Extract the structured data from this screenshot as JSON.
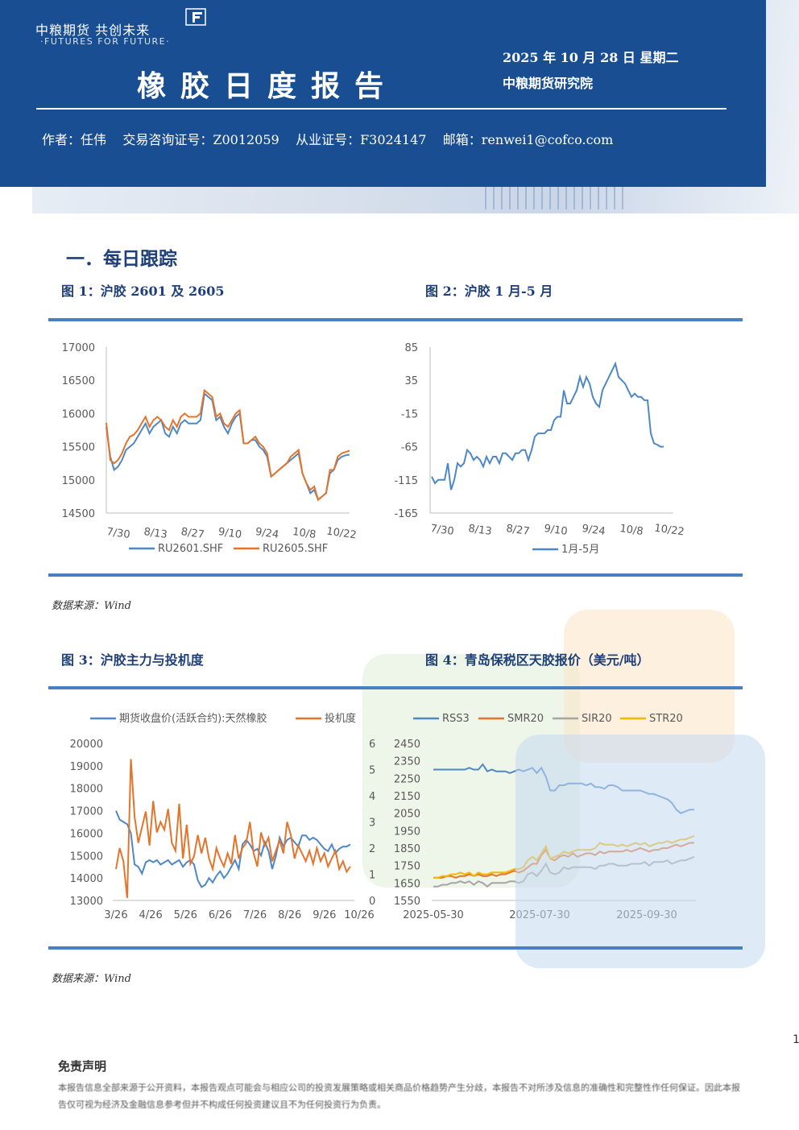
{
  "header": {
    "logo_text": "中粮期货  共创未来",
    "logo_sub": "·FUTURES FOR FUTURE·",
    "title": "橡胶日度报告",
    "date": "2025 年 10 月 28 日  星期二",
    "org": "中粮期货研究院",
    "author_line": "作者：任伟    交易咨询证号：Z0012059    从业证号：F3024147    邮箱：renwei1@cofco.com"
  },
  "section": {
    "title": "一．每日跟踪"
  },
  "figures": {
    "fig1_title": "图 1：沪胶 2601 及 2605",
    "fig2_title": "图 2：沪胶 1 月-5 月",
    "fig3_title": "图 3：沪胶主力与投机度",
    "fig4_title": "图 4：青岛保税区天胶报价（美元/吨）"
  },
  "sources": {
    "s1": "数据来源：Wind",
    "s2": "数据来源：Wind"
  },
  "page_number": "1",
  "disclaimer": {
    "title": "免责声明",
    "text": "本报告信息全部来源于公开资料，本报告观点可能会与相应公司的投资发展策略或相关商品价格趋势产生分歧，本报告不对所涉及信息的准确性和完整性作任何保证。因此本报告仅可视为经济及金融信息参考但并不构成任何投资建议且不为任何投资行为负责。"
  },
  "colors": {
    "header_blue": "#1a4e92",
    "rule_blue": "#4a7fc0",
    "series_blue": "#4e87c8",
    "series_orange": "#e5742a",
    "series_gray": "#a5a5a5",
    "series_yellow": "#f4b800"
  },
  "chart_data": [
    {
      "id": "fig1",
      "type": "line",
      "x_ticks": [
        "7/30",
        "8/13",
        "8/27",
        "9/10",
        "9/24",
        "10/8",
        "10/22"
      ],
      "y_ticks": [
        "17000",
        "16500",
        "16000",
        "15500",
        "15000",
        "14500"
      ],
      "ylim": [
        14500,
        17000
      ],
      "series": [
        {
          "name": "RU2601.SHF",
          "color": "#4e87c8",
          "values": [
            15800,
            15350,
            15150,
            15200,
            15300,
            15450,
            15500,
            15550,
            15650,
            15750,
            15850,
            15700,
            15800,
            15850,
            15900,
            15700,
            15650,
            15800,
            15700,
            15850,
            15900,
            15850,
            15850,
            15850,
            15900,
            16300,
            16250,
            16200,
            15900,
            15950,
            15800,
            15700,
            15850,
            15950,
            16000,
            15550,
            15550,
            15600,
            15600,
            15500,
            15450,
            15350,
            15050,
            15100,
            15150,
            15200,
            15250,
            15300,
            15350,
            15400,
            15100,
            14950,
            14800,
            14850,
            14700,
            14750,
            14800,
            15100,
            15150,
            15300,
            15350,
            15370,
            15380
          ]
        },
        {
          "name": "RU2605.SHF",
          "color": "#e5742a",
          "values": [
            15860,
            15300,
            15250,
            15300,
            15400,
            15550,
            15650,
            15680,
            15750,
            15850,
            15950,
            15800,
            15900,
            15950,
            15900,
            15800,
            15750,
            15900,
            15800,
            15950,
            16000,
            15950,
            15950,
            15950,
            16000,
            16350,
            16300,
            16250,
            15950,
            16000,
            15850,
            15800,
            15900,
            16000,
            16050,
            15550,
            15550,
            15600,
            15650,
            15550,
            15500,
            15400,
            15050,
            15100,
            15150,
            15200,
            15250,
            15350,
            15400,
            15450,
            15100,
            14950,
            14850,
            14900,
            14700,
            14750,
            14800,
            15150,
            15150,
            15350,
            15400,
            15420,
            15440
          ]
        }
      ]
    },
    {
      "id": "fig2",
      "type": "line",
      "x_ticks": [
        "7/30",
        "8/13",
        "8/27",
        "9/10",
        "9/24",
        "10/8",
        "10/22"
      ],
      "y_ticks": [
        "85",
        "35",
        "-15",
        "-65",
        "-115",
        "-165"
      ],
      "ylim": [
        -165,
        85
      ],
      "series": [
        {
          "name": "1月-5月",
          "color": "#4e87c8",
          "values": [
            -110,
            -120,
            -115,
            -115,
            -115,
            -90,
            -130,
            -115,
            -90,
            -95,
            -90,
            -70,
            -75,
            -85,
            -80,
            -85,
            -95,
            -80,
            -90,
            -80,
            -80,
            -90,
            -75,
            -75,
            -80,
            -85,
            -75,
            -75,
            -70,
            -70,
            -85,
            -70,
            -50,
            -45,
            -45,
            -45,
            -40,
            -40,
            -25,
            -20,
            -20,
            20,
            0,
            0,
            10,
            20,
            40,
            25,
            40,
            30,
            10,
            0,
            -5,
            20,
            30,
            40,
            50,
            60,
            40,
            35,
            30,
            20,
            10,
            15,
            10,
            10,
            5,
            5,
            -45,
            -60,
            -62,
            -65,
            -65
          ]
        }
      ]
    },
    {
      "id": "fig3",
      "type": "line",
      "x_ticks": [
        "3/26",
        "4/26",
        "5/26",
        "6/26",
        "7/26",
        "8/26",
        "9/26",
        "10/26"
      ],
      "y_ticks_left": [
        "20000",
        "19000",
        "18000",
        "17000",
        "16000",
        "15000",
        "14000",
        "13000"
      ],
      "y_ticks_right": [
        "6",
        "5",
        "4",
        "3",
        "2",
        "1",
        "0"
      ],
      "ylim_left": [
        13000,
        20000
      ],
      "ylim_right": [
        0,
        6
      ],
      "series": [
        {
          "name": "期货收盘价(活跃合约):天然橡胶",
          "color": "#4e87c8",
          "axis": "left",
          "values": [
            17000,
            16600,
            16500,
            16400,
            16000,
            14600,
            14500,
            14200,
            14700,
            14800,
            14700,
            14800,
            14600,
            14700,
            14800,
            14600,
            14700,
            14800,
            14500,
            14700,
            14800,
            14600,
            13900,
            13600,
            13700,
            14000,
            13800,
            14100,
            14300,
            14000,
            14200,
            14500,
            14800,
            14400,
            15500,
            15700,
            15500,
            15200,
            15300,
            15000,
            15600,
            15200,
            14400,
            15000,
            15800,
            15400,
            15700,
            15800,
            15600,
            15400,
            15900,
            15900,
            15700,
            15800,
            15700,
            15500,
            15300,
            15200,
            15500,
            15100,
            15300,
            15400,
            15400,
            15500
          ]
        },
        {
          "name": "投机度",
          "color": "#e5742a",
          "axis": "right",
          "values": [
            1.2,
            2.0,
            1.5,
            0.1,
            5.4,
            3.2,
            2.2,
            2.8,
            3.4,
            2.1,
            3.8,
            2.6,
            3.0,
            2.7,
            3.5,
            2.2,
            1.9,
            3.7,
            1.6,
            2.9,
            1.4,
            1.7,
            2.5,
            1.8,
            2.4,
            1.6,
            1.2,
            2.0,
            1.6,
            1.3,
            1.8,
            1.4,
            2.5,
            1.6,
            2.0,
            2.2,
            3.0,
            1.8,
            1.3,
            2.6,
            2.1,
            2.4,
            1.5,
            1.9,
            2.3,
            1.8,
            3.0,
            2.5,
            1.6,
            2.1,
            1.8,
            1.5,
            1.9,
            1.4,
            2.0,
            1.5,
            1.8,
            1.3,
            1.6,
            1.9,
            1.2,
            1.5,
            1.1,
            1.3
          ]
        }
      ]
    },
    {
      "id": "fig4",
      "type": "line",
      "x_ticks": [
        "2025-05-30",
        "2025-07-30",
        "2025-09-30"
      ],
      "y_ticks": [
        "2450",
        "2350",
        "2250",
        "2150",
        "2050",
        "1950",
        "1850",
        "1750",
        "1650",
        "1550"
      ],
      "ylim": [
        1550,
        2450
      ],
      "series": [
        {
          "name": "RSS3",
          "color": "#4e87c8",
          "values": [
            2300,
            2300,
            2300,
            2300,
            2300,
            2300,
            2300,
            2300,
            2310,
            2300,
            2300,
            2330,
            2290,
            2300,
            2290,
            2290,
            2290,
            2280,
            2290,
            2300,
            2290,
            2300,
            2310,
            2280,
            2310,
            2260,
            2180,
            2180,
            2210,
            2210,
            2220,
            2220,
            2220,
            2220,
            2210,
            2220,
            2200,
            2200,
            2190,
            2210,
            2210,
            2200,
            2180,
            2180,
            2180,
            2180,
            2180,
            2170,
            2160,
            2160,
            2150,
            2140,
            2130,
            2110,
            2070,
            2050,
            2060,
            2070,
            2070
          ]
        },
        {
          "name": "SMR20",
          "color": "#e5742a",
          "values": [
            1680,
            1680,
            1680,
            1690,
            1690,
            1680,
            1690,
            1690,
            1700,
            1690,
            1700,
            1690,
            1690,
            1700,
            1690,
            1700,
            1700,
            1710,
            1720,
            1710,
            1720,
            1740,
            1760,
            1760,
            1810,
            1840,
            1790,
            1780,
            1800,
            1810,
            1800,
            1820,
            1800,
            1810,
            1820,
            1820,
            1810,
            1830,
            1820,
            1830,
            1830,
            1830,
            1830,
            1840,
            1830,
            1840,
            1850,
            1840,
            1830,
            1840,
            1840,
            1850,
            1850,
            1860,
            1870,
            1860,
            1870,
            1880,
            1880
          ]
        },
        {
          "name": "SIR20",
          "color": "#a5a5a5",
          "values": [
            1630,
            1630,
            1640,
            1640,
            1650,
            1650,
            1660,
            1650,
            1660,
            1640,
            1660,
            1650,
            1630,
            1650,
            1650,
            1650,
            1650,
            1660,
            1660,
            1650,
            1660,
            1700,
            1710,
            1690,
            1720,
            1760,
            1710,
            1700,
            1710,
            1740,
            1730,
            1740,
            1740,
            1740,
            1740,
            1740,
            1730,
            1750,
            1750,
            1760,
            1760,
            1750,
            1750,
            1750,
            1760,
            1760,
            1760,
            1770,
            1750,
            1770,
            1770,
            1770,
            1780,
            1760,
            1770,
            1780,
            1780,
            1790,
            1800
          ]
        },
        {
          "name": "STR20",
          "color": "#f4b800",
          "values": [
            1680,
            1680,
            1690,
            1690,
            1700,
            1700,
            1710,
            1700,
            1710,
            1690,
            1710,
            1700,
            1700,
            1710,
            1710,
            1710,
            1710,
            1720,
            1730,
            1730,
            1740,
            1780,
            1800,
            1780,
            1820,
            1860,
            1790,
            1800,
            1810,
            1830,
            1820,
            1830,
            1840,
            1840,
            1840,
            1840,
            1850,
            1880,
            1870,
            1870,
            1870,
            1860,
            1870,
            1860,
            1870,
            1880,
            1870,
            1880,
            1860,
            1870,
            1880,
            1880,
            1890,
            1880,
            1890,
            1900,
            1900,
            1910,
            1920
          ]
        }
      ]
    }
  ]
}
